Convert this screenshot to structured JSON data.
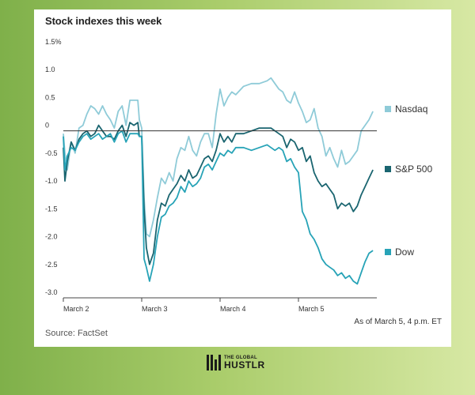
{
  "title": "Stock indexes this week",
  "note": "As of March 5, 4 p.m. ET",
  "source": "Source: FactSet",
  "brand": {
    "line1": "THE GLOBAL",
    "line2": "HUSTLR"
  },
  "chart_data": {
    "type": "line",
    "title": "Stock indexes this week",
    "xlabel": "",
    "ylabel": "",
    "ylim": [
      -3.0,
      1.5
    ],
    "xlim": [
      0,
      4
    ],
    "yticks": [
      1.5,
      1.0,
      0.5,
      0,
      -0.5,
      -1.0,
      -1.5,
      -2.0,
      -2.5,
      -3.0
    ],
    "ytick_labels": [
      "1.5%",
      "1.0",
      "0.5",
      "0",
      "-0.5",
      "-1.0",
      "-1.5",
      "-2.0",
      "-2.5",
      "-3.0"
    ],
    "xticks": [
      0,
      1,
      2,
      3
    ],
    "xtick_labels": [
      "March 2",
      "March 3",
      "March 4",
      "March 5"
    ],
    "grid": "none",
    "legend": "right",
    "series": [
      {
        "name": "Nasdaq",
        "color": "#8fcbd8",
        "x": [
          0,
          0.02,
          0.05,
          0.1,
          0.15,
          0.2,
          0.25,
          0.3,
          0.35,
          0.4,
          0.45,
          0.5,
          0.55,
          0.6,
          0.65,
          0.7,
          0.75,
          0.8,
          0.85,
          0.9,
          0.95,
          0.97,
          1.0,
          1.03,
          1.06,
          1.1,
          1.15,
          1.2,
          1.25,
          1.3,
          1.35,
          1.4,
          1.45,
          1.5,
          1.55,
          1.6,
          1.65,
          1.7,
          1.75,
          1.8,
          1.85,
          1.9,
          1.95,
          2.0,
          2.05,
          2.1,
          2.15,
          2.2,
          2.3,
          2.4,
          2.5,
          2.6,
          2.65,
          2.7,
          2.75,
          2.8,
          2.85,
          2.9,
          2.95,
          3.0,
          3.05,
          3.1,
          3.15,
          3.2,
          3.25,
          3.3,
          3.35,
          3.4,
          3.45,
          3.5,
          3.55,
          3.6,
          3.65,
          3.7,
          3.75,
          3.8,
          3.85,
          3.9,
          3.95
        ],
        "values": [
          -0.05,
          -0.4,
          -0.7,
          -0.2,
          -0.4,
          0.05,
          0.1,
          0.3,
          0.45,
          0.4,
          0.3,
          0.45,
          0.3,
          0.2,
          0.05,
          0.35,
          0.45,
          0.1,
          0.55,
          0.55,
          0.55,
          0.2,
          0.05,
          -1.2,
          -1.85,
          -1.9,
          -1.6,
          -1.2,
          -0.85,
          -0.95,
          -0.75,
          -0.9,
          -0.5,
          -0.3,
          -0.35,
          -0.1,
          -0.35,
          -0.45,
          -0.2,
          -0.05,
          -0.05,
          -0.3,
          0.3,
          0.75,
          0.45,
          0.6,
          0.7,
          0.65,
          0.8,
          0.85,
          0.85,
          0.9,
          0.95,
          0.85,
          0.75,
          0.7,
          0.55,
          0.5,
          0.7,
          0.5,
          0.35,
          0.15,
          0.2,
          0.4,
          0.05,
          -0.1,
          -0.45,
          -0.3,
          -0.5,
          -0.65,
          -0.35,
          -0.6,
          -0.55,
          -0.45,
          -0.35,
          0.0,
          0.1,
          0.2,
          0.35
        ]
      },
      {
        "name": "S&P 500",
        "color": "#1a6570",
        "x": [
          0,
          0.02,
          0.05,
          0.1,
          0.15,
          0.2,
          0.25,
          0.3,
          0.35,
          0.4,
          0.45,
          0.5,
          0.55,
          0.6,
          0.65,
          0.7,
          0.75,
          0.8,
          0.85,
          0.9,
          0.95,
          0.97,
          1.0,
          1.03,
          1.06,
          1.1,
          1.15,
          1.2,
          1.25,
          1.3,
          1.35,
          1.4,
          1.45,
          1.5,
          1.55,
          1.6,
          1.65,
          1.7,
          1.75,
          1.8,
          1.85,
          1.9,
          1.95,
          2.0,
          2.05,
          2.1,
          2.15,
          2.2,
          2.3,
          2.4,
          2.5,
          2.6,
          2.65,
          2.7,
          2.75,
          2.8,
          2.85,
          2.9,
          2.95,
          3.0,
          3.05,
          3.1,
          3.15,
          3.2,
          3.25,
          3.3,
          3.35,
          3.4,
          3.45,
          3.5,
          3.55,
          3.6,
          3.65,
          3.7,
          3.75,
          3.8,
          3.85,
          3.9,
          3.95
        ],
        "values": [
          -0.3,
          -0.9,
          -0.55,
          -0.2,
          -0.35,
          -0.15,
          -0.05,
          0.0,
          -0.1,
          -0.05,
          0.1,
          0.0,
          -0.1,
          -0.1,
          -0.15,
          0.0,
          0.1,
          -0.1,
          0.15,
          0.1,
          0.15,
          -0.1,
          -0.1,
          -1.4,
          -2.1,
          -2.4,
          -2.2,
          -1.6,
          -1.3,
          -1.35,
          -1.15,
          -1.05,
          -0.95,
          -0.8,
          -0.9,
          -0.7,
          -0.85,
          -0.8,
          -0.65,
          -0.5,
          -0.45,
          -0.55,
          -0.35,
          -0.05,
          -0.2,
          -0.1,
          -0.2,
          -0.05,
          -0.05,
          0.0,
          0.05,
          0.05,
          0.05,
          0.0,
          -0.05,
          -0.1,
          -0.3,
          -0.15,
          -0.2,
          -0.35,
          -0.3,
          -0.55,
          -0.45,
          -0.75,
          -0.9,
          -1.0,
          -0.95,
          -1.05,
          -1.15,
          -1.4,
          -1.3,
          -1.35,
          -1.3,
          -1.45,
          -1.35,
          -1.15,
          -1.0,
          -0.85,
          -0.7
        ]
      },
      {
        "name": "Dow",
        "color": "#27a3b7",
        "x": [
          0,
          0.02,
          0.05,
          0.1,
          0.15,
          0.2,
          0.25,
          0.3,
          0.35,
          0.4,
          0.45,
          0.5,
          0.55,
          0.6,
          0.65,
          0.7,
          0.75,
          0.8,
          0.85,
          0.9,
          0.95,
          0.97,
          1.0,
          1.03,
          1.06,
          1.1,
          1.15,
          1.2,
          1.25,
          1.3,
          1.35,
          1.4,
          1.45,
          1.5,
          1.55,
          1.6,
          1.65,
          1.7,
          1.75,
          1.8,
          1.85,
          1.9,
          1.95,
          2.0,
          2.05,
          2.1,
          2.15,
          2.2,
          2.3,
          2.4,
          2.5,
          2.6,
          2.65,
          2.7,
          2.75,
          2.8,
          2.85,
          2.9,
          2.95,
          3.0,
          3.05,
          3.1,
          3.15,
          3.2,
          3.25,
          3.3,
          3.35,
          3.4,
          3.45,
          3.5,
          3.55,
          3.6,
          3.65,
          3.7,
          3.75,
          3.8,
          3.85,
          3.9,
          3.95
        ],
        "values": [
          -0.1,
          -0.7,
          -0.45,
          -0.3,
          -0.35,
          -0.2,
          -0.1,
          -0.05,
          -0.15,
          -0.1,
          -0.05,
          -0.15,
          -0.1,
          -0.05,
          -0.2,
          -0.05,
          0.0,
          -0.2,
          -0.05,
          -0.05,
          -0.05,
          -0.1,
          -0.1,
          -2.3,
          -2.45,
          -2.7,
          -2.4,
          -1.9,
          -1.55,
          -1.5,
          -1.35,
          -1.3,
          -1.2,
          -1.0,
          -1.1,
          -0.9,
          -1.0,
          -0.95,
          -0.85,
          -0.65,
          -0.6,
          -0.7,
          -0.55,
          -0.4,
          -0.45,
          -0.35,
          -0.4,
          -0.3,
          -0.3,
          -0.35,
          -0.3,
          -0.25,
          -0.3,
          -0.35,
          -0.3,
          -0.35,
          -0.55,
          -0.5,
          -0.65,
          -0.75,
          -1.45,
          -1.6,
          -1.85,
          -1.95,
          -2.1,
          -2.3,
          -2.4,
          -2.45,
          -2.5,
          -2.6,
          -2.55,
          -2.65,
          -2.6,
          -2.7,
          -2.75,
          -2.55,
          -2.35,
          -2.2,
          -2.15
        ]
      }
    ]
  }
}
